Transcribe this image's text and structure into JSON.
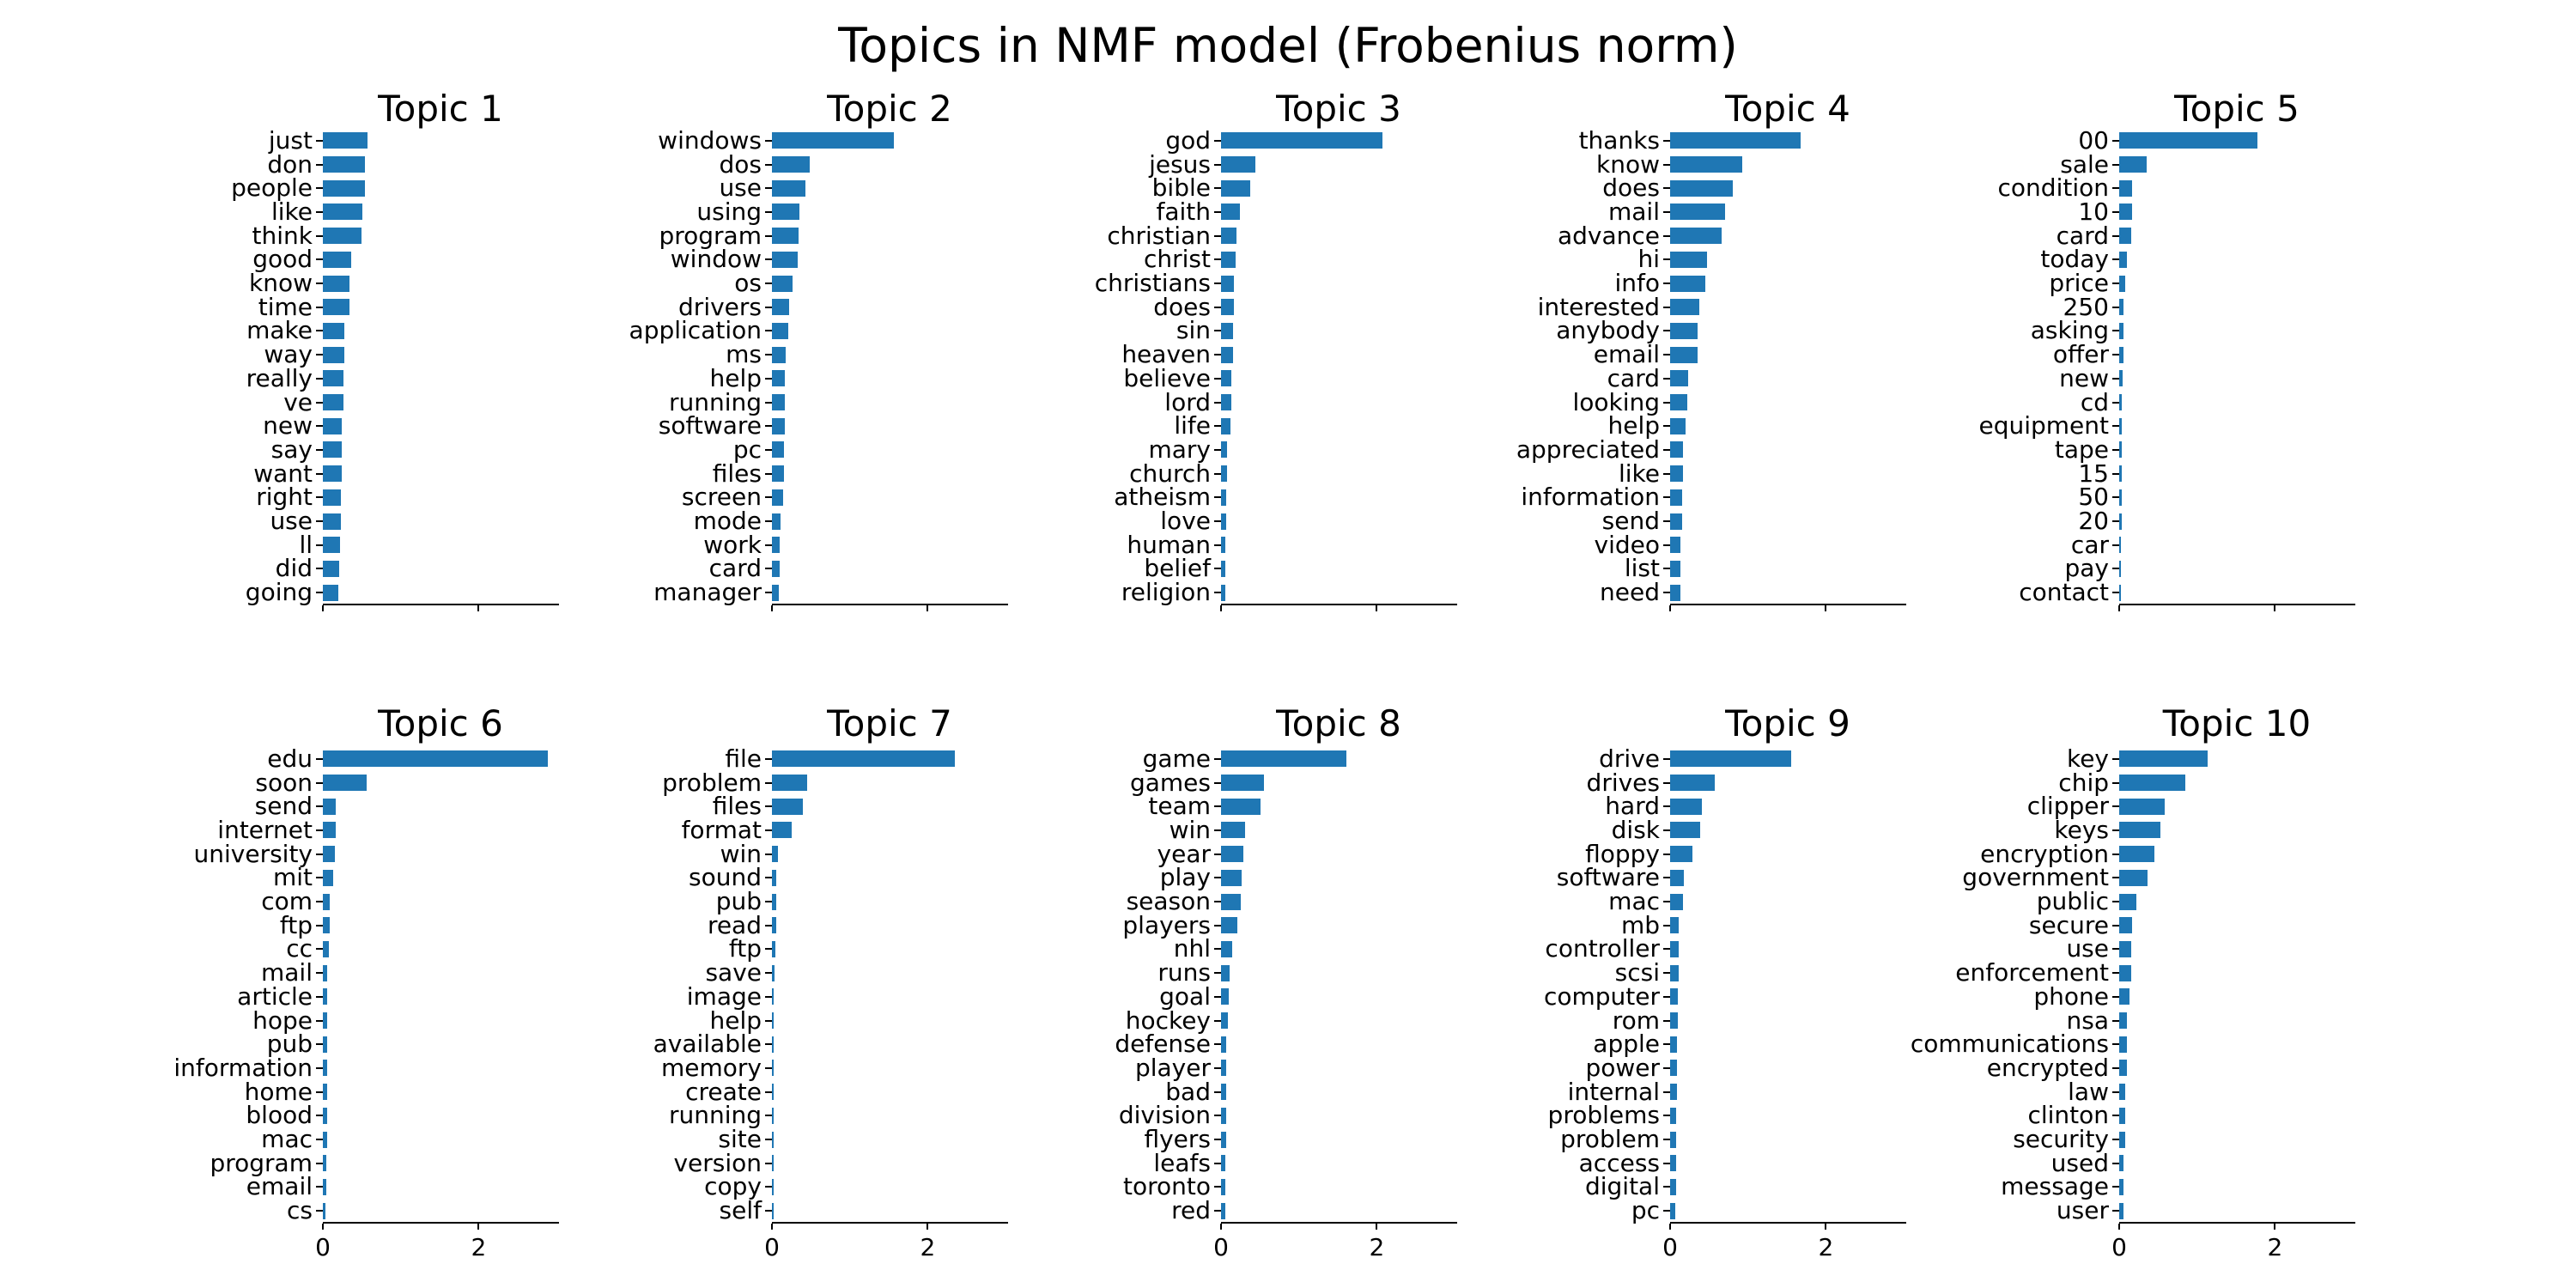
{
  "figure": {
    "background": "#ffffff",
    "text_color": "#000000"
  },
  "chart_data": {
    "type": "bar",
    "orientation": "horizontal",
    "title": "Topics in NMF model (Frobenius norm)",
    "bar_color": "#1f77b4",
    "grid": false,
    "xlim": [
      0,
      3.02
    ],
    "x_tick_values": [
      0,
      2
    ],
    "x_tick_labels": [
      "0",
      "2"
    ],
    "x_tick_labels_visible_rows": "bottom-only",
    "layout": "2 rows x 5 columns",
    "subplots": [
      {
        "title": "Topic 1",
        "words": [
          "just",
          "don",
          "people",
          "like",
          "think",
          "good",
          "know",
          "time",
          "make",
          "way",
          "really",
          "ve",
          "new",
          "say",
          "want",
          "right",
          "use",
          "ll",
          "did",
          "going"
        ],
        "weights": [
          0.57,
          0.54,
          0.54,
          0.51,
          0.5,
          0.36,
          0.34,
          0.34,
          0.28,
          0.28,
          0.26,
          0.26,
          0.24,
          0.24,
          0.24,
          0.23,
          0.23,
          0.22,
          0.21,
          0.2
        ]
      },
      {
        "title": "Topic 2",
        "words": [
          "windows",
          "dos",
          "use",
          "using",
          "program",
          "window",
          "os",
          "drivers",
          "application",
          "ms",
          "help",
          "running",
          "software",
          "pc",
          "files",
          "screen",
          "mode",
          "work",
          "card",
          "manager"
        ],
        "weights": [
          1.56,
          0.49,
          0.43,
          0.35,
          0.34,
          0.33,
          0.27,
          0.22,
          0.21,
          0.18,
          0.17,
          0.17,
          0.16,
          0.15,
          0.15,
          0.14,
          0.11,
          0.1,
          0.1,
          0.09
        ]
      },
      {
        "title": "Topic 3",
        "words": [
          "god",
          "jesus",
          "bible",
          "faith",
          "christian",
          "christ",
          "christians",
          "does",
          "sin",
          "heaven",
          "believe",
          "lord",
          "life",
          "mary",
          "church",
          "atheism",
          "love",
          "human",
          "belief",
          "religion"
        ],
        "weights": [
          2.07,
          0.44,
          0.37,
          0.24,
          0.2,
          0.19,
          0.17,
          0.16,
          0.15,
          0.15,
          0.13,
          0.13,
          0.12,
          0.08,
          0.08,
          0.07,
          0.07,
          0.06,
          0.06,
          0.05
        ]
      },
      {
        "title": "Topic 4",
        "words": [
          "thanks",
          "know",
          "does",
          "mail",
          "advance",
          "hi",
          "info",
          "interested",
          "anybody",
          "email",
          "card",
          "looking",
          "help",
          "appreciated",
          "like",
          "information",
          "send",
          "video",
          "list",
          "need"
        ],
        "weights": [
          1.67,
          0.93,
          0.81,
          0.7,
          0.66,
          0.47,
          0.45,
          0.37,
          0.35,
          0.35,
          0.23,
          0.22,
          0.2,
          0.17,
          0.17,
          0.15,
          0.15,
          0.13,
          0.13,
          0.13
        ]
      },
      {
        "title": "Topic 5",
        "words": [
          "00",
          "sale",
          "condition",
          "10",
          "card",
          "today",
          "price",
          "250",
          "asking",
          "offer",
          "new",
          "cd",
          "equipment",
          "tape",
          "15",
          "50",
          "20",
          "car",
          "pay",
          "contact"
        ],
        "weights": [
          1.77,
          0.35,
          0.17,
          0.16,
          0.15,
          0.1,
          0.08,
          0.06,
          0.05,
          0.05,
          0.04,
          0.035,
          0.03,
          0.03,
          0.03,
          0.03,
          0.03,
          0.02,
          0.02,
          0.02
        ]
      },
      {
        "title": "Topic 6",
        "words": [
          "edu",
          "soon",
          "send",
          "internet",
          "university",
          "mit",
          "com",
          "ftp",
          "cc",
          "mail",
          "article",
          "hope",
          "pub",
          "information",
          "home",
          "blood",
          "mac",
          "program",
          "email",
          "cs"
        ],
        "weights": [
          2.89,
          0.56,
          0.16,
          0.16,
          0.15,
          0.13,
          0.09,
          0.09,
          0.08,
          0.06,
          0.06,
          0.06,
          0.05,
          0.05,
          0.05,
          0.05,
          0.05,
          0.04,
          0.04,
          0.03
        ]
      },
      {
        "title": "Topic 7",
        "words": [
          "file",
          "problem",
          "files",
          "format",
          "win",
          "sound",
          "pub",
          "read",
          "ftp",
          "save",
          "image",
          "help",
          "available",
          "memory",
          "create",
          "running",
          "site",
          "version",
          "copy",
          "self"
        ],
        "weights": [
          2.35,
          0.45,
          0.4,
          0.25,
          0.08,
          0.06,
          0.05,
          0.05,
          0.04,
          0.03,
          0.02,
          0.02,
          0.02,
          0.015,
          0.015,
          0.015,
          0.015,
          0.01,
          0.01,
          0.01
        ]
      },
      {
        "title": "Topic 8",
        "words": [
          "game",
          "games",
          "team",
          "win",
          "year",
          "play",
          "season",
          "players",
          "nhl",
          "runs",
          "goal",
          "hockey",
          "defense",
          "player",
          "bad",
          "division",
          "flyers",
          "leafs",
          "toronto",
          "red"
        ],
        "weights": [
          1.61,
          0.55,
          0.51,
          0.31,
          0.29,
          0.26,
          0.25,
          0.21,
          0.14,
          0.11,
          0.1,
          0.09,
          0.07,
          0.07,
          0.07,
          0.07,
          0.07,
          0.06,
          0.06,
          0.05
        ]
      },
      {
        "title": "Topic 9",
        "words": [
          "drive",
          "drives",
          "hard",
          "disk",
          "floppy",
          "software",
          "mac",
          "mb",
          "controller",
          "scsi",
          "computer",
          "rom",
          "apple",
          "power",
          "internal",
          "problems",
          "problem",
          "access",
          "digital",
          "pc"
        ],
        "weights": [
          1.55,
          0.57,
          0.41,
          0.39,
          0.29,
          0.18,
          0.16,
          0.11,
          0.11,
          0.11,
          0.1,
          0.1,
          0.09,
          0.09,
          0.09,
          0.08,
          0.08,
          0.08,
          0.08,
          0.07
        ]
      },
      {
        "title": "Topic 10",
        "words": [
          "key",
          "chip",
          "clipper",
          "keys",
          "encryption",
          "government",
          "public",
          "secure",
          "use",
          "enforcement",
          "phone",
          "nsa",
          "communications",
          "encrypted",
          "law",
          "clinton",
          "security",
          "used",
          "message",
          "user"
        ],
        "weights": [
          1.14,
          0.85,
          0.58,
          0.53,
          0.45,
          0.36,
          0.22,
          0.16,
          0.15,
          0.15,
          0.13,
          0.1,
          0.1,
          0.1,
          0.08,
          0.08,
          0.08,
          0.06,
          0.06,
          0.05
        ]
      }
    ]
  }
}
